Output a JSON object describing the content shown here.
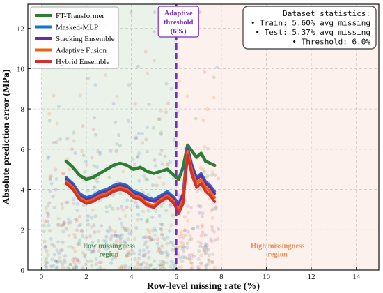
{
  "chart_data": {
    "type": "line",
    "xlabel": "Row-level missing rate (%)",
    "ylabel": "Absolute prediction error (MPa)",
    "xlim": [
      -0.6,
      15.0
    ],
    "ylim": [
      0,
      13.2
    ],
    "xticks": [
      0,
      2,
      4,
      6,
      8,
      10,
      12,
      14
    ],
    "yticks": [
      0,
      2,
      4,
      6,
      8,
      10,
      12
    ],
    "xtick_labels": [
      "0",
      "2",
      "4",
      "6",
      "8",
      "10",
      "12",
      "14"
    ],
    "ytick_labels": [
      "0",
      "2",
      "4",
      "6",
      "8",
      "10",
      "12"
    ],
    "grid": true,
    "legend_position": "top-left",
    "series": [
      {
        "name": "FT-Transformer",
        "color": "#2e7d32",
        "x": [
          1.1,
          1.4,
          1.7,
          2.0,
          2.3,
          2.6,
          2.9,
          3.2,
          3.5,
          3.8,
          4.1,
          4.4,
          4.7,
          5.0,
          5.3,
          5.6,
          5.9,
          6.1,
          6.3,
          6.5,
          6.7,
          6.9,
          7.1,
          7.3,
          7.5,
          7.7
        ],
        "y": [
          5.4,
          5.1,
          4.7,
          4.5,
          4.6,
          4.8,
          5.0,
          5.2,
          5.3,
          5.2,
          5.0,
          5.1,
          4.9,
          4.8,
          4.9,
          5.0,
          4.7,
          4.5,
          5.1,
          6.2,
          5.9,
          5.6,
          5.8,
          5.4,
          5.3,
          5.2
        ]
      },
      {
        "name": "Masked-MLP",
        "color": "#1f6fd0",
        "x": [
          1.1,
          1.4,
          1.7,
          2.0,
          2.3,
          2.6,
          2.9,
          3.2,
          3.5,
          3.8,
          4.1,
          4.4,
          4.7,
          5.0,
          5.3,
          5.6,
          5.9,
          6.1,
          6.3,
          6.5,
          6.7,
          6.9,
          7.1,
          7.3,
          7.5,
          7.7
        ],
        "y": [
          4.6,
          4.3,
          3.8,
          3.6,
          3.7,
          3.9,
          4.0,
          4.2,
          4.3,
          4.2,
          3.9,
          3.8,
          3.6,
          3.5,
          3.7,
          3.9,
          3.6,
          3.3,
          3.8,
          6.1,
          5.2,
          4.6,
          4.8,
          4.4,
          4.2,
          3.9
        ]
      },
      {
        "name": "Stacking Ensemble",
        "color": "#6a2c9e",
        "x": [
          1.1,
          1.4,
          1.7,
          2.0,
          2.3,
          2.6,
          2.9,
          3.2,
          3.5,
          3.8,
          4.1,
          4.4,
          4.7,
          5.0,
          5.3,
          5.6,
          5.9,
          6.1,
          6.3,
          6.5,
          6.7,
          6.9,
          7.1,
          7.3,
          7.5,
          7.7
        ],
        "y": [
          4.5,
          4.2,
          3.7,
          3.5,
          3.6,
          3.8,
          3.9,
          4.1,
          4.2,
          4.1,
          3.8,
          3.7,
          3.5,
          3.4,
          3.6,
          3.8,
          3.5,
          3.2,
          3.7,
          6.0,
          5.1,
          4.5,
          4.7,
          4.3,
          4.1,
          3.8
        ]
      },
      {
        "name": "Adaptive Fusion",
        "color": "#e8650f",
        "x": [
          1.1,
          1.4,
          1.7,
          2.0,
          2.3,
          2.6,
          2.9,
          3.2,
          3.5,
          3.8,
          4.1,
          4.4,
          4.7,
          5.0,
          5.3,
          5.6,
          5.9,
          6.1,
          6.3,
          6.5,
          6.7,
          6.9,
          7.1,
          7.3,
          7.5,
          7.7
        ],
        "y": [
          4.4,
          4.1,
          3.6,
          3.4,
          3.5,
          3.7,
          3.8,
          4.0,
          4.1,
          4.0,
          3.7,
          3.6,
          3.3,
          3.2,
          3.5,
          3.7,
          3.4,
          3.0,
          3.5,
          5.9,
          4.9,
          4.3,
          4.5,
          4.1,
          3.9,
          3.6
        ]
      },
      {
        "name": "Hybrid Ensemble",
        "color": "#d32f2f",
        "x": [
          1.1,
          1.4,
          1.7,
          2.0,
          2.3,
          2.6,
          2.9,
          3.2,
          3.5,
          3.8,
          4.1,
          4.4,
          4.7,
          5.0,
          5.3,
          5.6,
          5.9,
          6.1,
          6.3,
          6.5,
          6.7,
          6.9,
          7.1,
          7.3,
          7.5,
          7.7
        ],
        "y": [
          4.3,
          4.0,
          3.5,
          3.3,
          3.4,
          3.6,
          3.7,
          3.9,
          4.0,
          3.9,
          3.6,
          3.5,
          3.2,
          3.1,
          3.4,
          3.6,
          3.3,
          2.8,
          3.3,
          5.7,
          4.7,
          4.1,
          4.3,
          3.9,
          3.7,
          3.4
        ]
      }
    ],
    "threshold": {
      "x": 6.0,
      "color": "#7b2cbf",
      "label_lines": [
        "Adaptive",
        "threshold",
        "(6%)"
      ]
    },
    "regions": [
      {
        "name": "low",
        "x_range": [
          0.0,
          6.0
        ],
        "color": "#2e7d32",
        "label_lines": [
          "Low missingness",
          "region"
        ],
        "label_color": "#5a8f5c",
        "label_pos": [
          3.0,
          1.1
        ]
      },
      {
        "name": "high",
        "x_range": [
          6.0,
          15.0
        ],
        "color": "#e07a4f",
        "label_lines": [
          "High missingness",
          "region"
        ],
        "label_color": "#ec8f5a",
        "label_pos": [
          10.5,
          1.1
        ]
      }
    ],
    "stats_box": {
      "position": "top-right",
      "lines": [
        "Dataset statistics:",
        "• Train: 5.60% avg missing",
        "• Test: 5.37% avg missing",
        "• Threshold: 6.0%"
      ]
    }
  }
}
